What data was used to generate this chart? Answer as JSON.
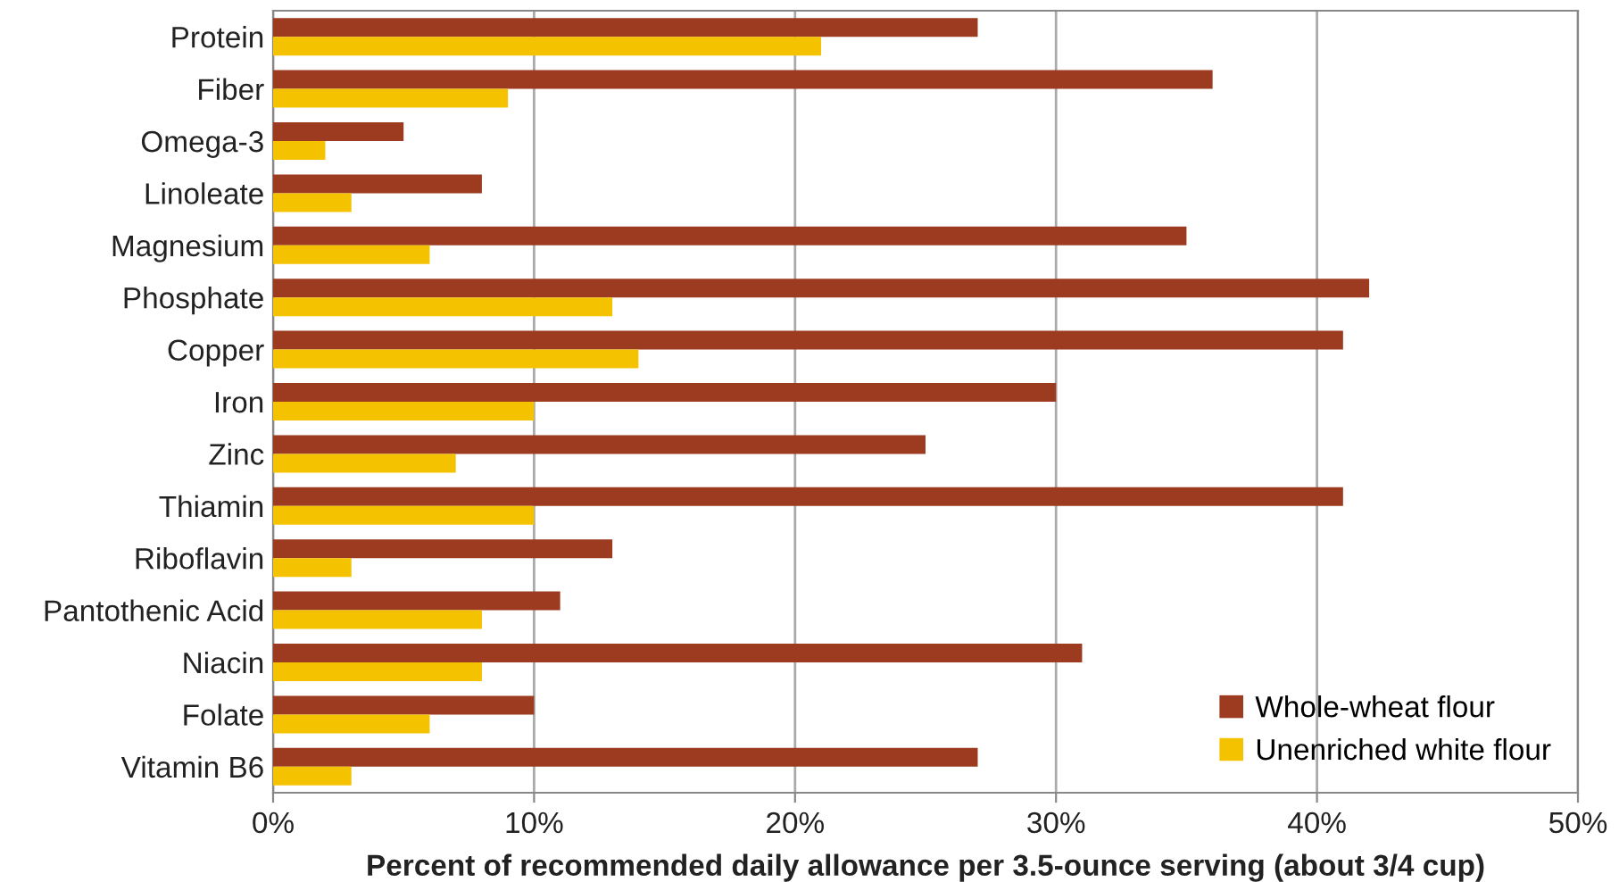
{
  "chart_data": {
    "type": "bar",
    "orientation": "horizontal",
    "xlabel": "Percent of recommended daily allowance per 3.5-ounce serving (about 3/4 cup)",
    "categories": [
      "Protein",
      "Fiber",
      "Omega-3",
      "Linoleate",
      "Magnesium",
      "Phosphate",
      "Copper",
      "Iron",
      "Zinc",
      "Thiamin",
      "Riboflavin",
      "Pantothenic Acid",
      "Niacin",
      "Folate",
      "Vitamin B6"
    ],
    "series": [
      {
        "name": "Whole-wheat flour",
        "color": "#9c3b1f",
        "values": [
          27,
          36,
          5,
          8,
          35,
          42,
          41,
          30,
          25,
          41,
          13,
          11,
          31,
          10,
          27
        ]
      },
      {
        "name": "Unenriched white flour",
        "color": "#f5c200",
        "values": [
          21,
          9,
          2,
          3,
          6,
          13,
          14,
          10,
          7,
          10,
          3,
          8,
          8,
          6,
          3
        ]
      }
    ],
    "xlim": [
      0,
      50
    ],
    "xticks": [
      {
        "value": 0,
        "label": "0%"
      },
      {
        "value": 10,
        "label": "10%"
      },
      {
        "value": 20,
        "label": "20%"
      },
      {
        "value": 30,
        "label": "30%"
      },
      {
        "value": 40,
        "label": "40%"
      },
      {
        "value": 50,
        "label": "50%"
      }
    ],
    "grid": "x",
    "legend": "bottom right"
  }
}
